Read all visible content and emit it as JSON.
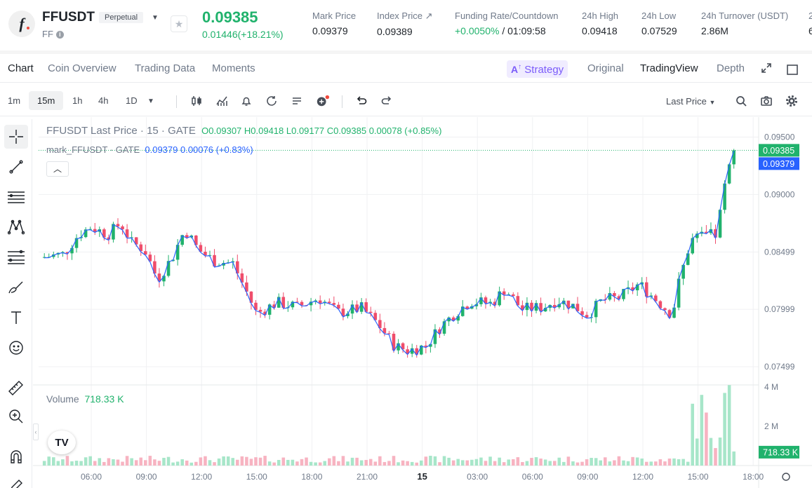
{
  "header": {
    "symbol": "FFUSDT",
    "contract_type": "Perpetual",
    "base_asset": "FF",
    "last_price": "0.09385",
    "change": "0.01446(+18.21%)",
    "stats": [
      {
        "label": "Mark Price",
        "value": "0.09379"
      },
      {
        "label": "Index Price ↗",
        "value": "0.09389"
      },
      {
        "label": "Funding Rate/Countdown",
        "value_green": "+0.0050%",
        "value_rest": " / 01:09:58"
      },
      {
        "label": "24h High",
        "value": "0.09418"
      },
      {
        "label": "24h Low",
        "value": "0.07529"
      },
      {
        "label": "24h Turnover (USDT)",
        "value": "2.86M"
      },
      {
        "label": "2",
        "value": "6"
      }
    ]
  },
  "tabs": [
    "Chart",
    "Coin Overview",
    "Trading Data",
    "Moments"
  ],
  "view_tabs": {
    "strategy": "Strategy",
    "original": "Original",
    "tradingview": "TradingView",
    "depth": "Depth"
  },
  "timeframes": [
    "1m",
    "15m",
    "1h",
    "4h",
    "1D"
  ],
  "price_source": "Last Price",
  "legend": {
    "title": "FFUSDT Last Price · 15 · GATE",
    "ohlc": "O0.09307 H0.09418 L0.09177 C0.09385 0.00078 (+0.85%)",
    "mark_title": "mark_FFUSDT · GATE",
    "mark_value": "0.09379 0.00076 (+0.83%)",
    "volume_label": "Volume",
    "volume_value": "718.33 K"
  },
  "colors": {
    "up": "#20b26c",
    "down": "#ef4d6b",
    "mark": "#2962ff",
    "up_vol": "#a7e6c9",
    "down_vol": "#f7b3c1"
  },
  "chart_data": {
    "type": "candlestick",
    "symbol": "FFUSDT",
    "interval": "15",
    "exchange": "GATE",
    "price_axis_ticks": [
      "0.09500",
      "0.09000",
      "0.08499",
      "0.07999",
      "0.07499"
    ],
    "price_ticks_values": [
      0.095,
      0.09,
      0.08499,
      0.07999,
      0.07499
    ],
    "ylim": [
      0.0734,
      0.0965
    ],
    "volume_axis_ticks": [
      "4 M",
      "2 M"
    ],
    "volume_ticks_values": [
      4000000,
      2000000
    ],
    "x_tick_labels": [
      "06:00",
      "09:00",
      "12:00",
      "15:00",
      "18:00",
      "21:00",
      "15",
      "03:00",
      "06:00",
      "09:00",
      "12:00",
      "15:00",
      "18:00"
    ],
    "x_tick_hours": [
      6,
      9,
      12,
      15,
      18,
      21,
      24,
      27,
      30,
      33,
      36,
      39,
      42
    ],
    "last_price_label": "0.09385",
    "mark_price_label": "0.09379",
    "volume_label": "718.33 K",
    "close_path": [
      [
        3.2,
        0.0845
      ],
      [
        4.5,
        0.0848
      ],
      [
        5.3,
        0.0865
      ],
      [
        6.0,
        0.0872
      ],
      [
        6.9,
        0.0865
      ],
      [
        7.6,
        0.0875
      ],
      [
        8.2,
        0.0858
      ],
      [
        8.9,
        0.0852
      ],
      [
        9.6,
        0.0826
      ],
      [
        10.4,
        0.0845
      ],
      [
        11.1,
        0.087
      ],
      [
        11.8,
        0.0852
      ],
      [
        12.7,
        0.0842
      ],
      [
        13.7,
        0.084
      ],
      [
        14.3,
        0.082
      ],
      [
        15.0,
        0.0796
      ],
      [
        16.1,
        0.0806
      ],
      [
        17.2,
        0.0802
      ],
      [
        18.4,
        0.081
      ],
      [
        19.4,
        0.0797
      ],
      [
        20.7,
        0.0801
      ],
      [
        21.6,
        0.0787
      ],
      [
        22.5,
        0.0768
      ],
      [
        23.2,
        0.0764
      ],
      [
        24.2,
        0.0768
      ],
      [
        25.0,
        0.0785
      ],
      [
        25.8,
        0.0797
      ],
      [
        26.6,
        0.0807
      ],
      [
        27.8,
        0.0805
      ],
      [
        28.5,
        0.0818
      ],
      [
        29.4,
        0.08
      ],
      [
        30.6,
        0.0802
      ],
      [
        31.3,
        0.0808
      ],
      [
        32.1,
        0.0804
      ],
      [
        33.0,
        0.0795
      ],
      [
        33.8,
        0.0808
      ],
      [
        34.7,
        0.081
      ],
      [
        35.8,
        0.0822
      ],
      [
        36.8,
        0.0807
      ],
      [
        37.6,
        0.0795
      ],
      [
        37.9,
        0.082
      ],
      [
        38.6,
        0.086
      ],
      [
        39.4,
        0.0864
      ],
      [
        40.0,
        0.0865
      ],
      [
        40.6,
        0.092
      ],
      [
        41.1,
        0.09385
      ]
    ],
    "volume_spikes": [
      [
        38.7,
        3150000
      ],
      [
        39.1,
        3600000
      ],
      [
        39.4,
        2700000
      ],
      [
        40.5,
        3700000
      ],
      [
        40.7,
        4100000
      ]
    ]
  }
}
